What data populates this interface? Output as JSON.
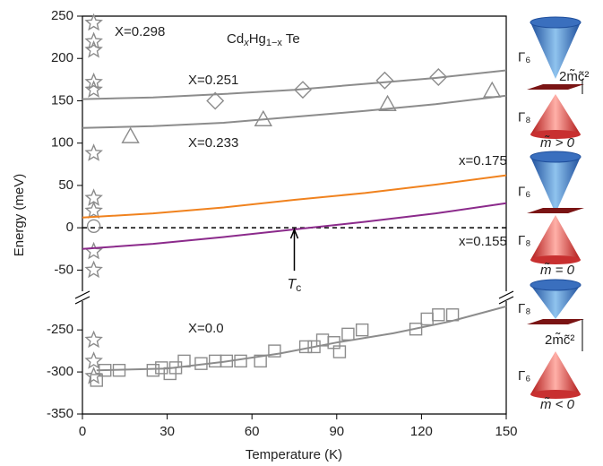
{
  "chart_data": {
    "type": "line",
    "title_parts": [
      "Cd",
      "x",
      "Hg",
      "1−x",
      " Te"
    ],
    "x_label": "Temperature (K)",
    "y_label": "Energy (meV)",
    "xlim": [
      0,
      150
    ],
    "xticks": [
      0,
      30,
      60,
      90,
      120,
      150
    ],
    "y_segments": [
      {
        "ylim": [
          -75,
          250
        ],
        "yticks": [
          -50,
          0,
          50,
          100,
          150,
          200,
          250
        ]
      },
      {
        "ylim": [
          -350,
          -220
        ],
        "yticks": [
          -350,
          -300,
          -250
        ]
      }
    ],
    "zero_line": true,
    "series": [
      {
        "name": "X=0.298",
        "color": "#8c8c8c",
        "marker": "star",
        "marker_x": [
          4,
          4,
          4,
          4,
          4,
          4,
          4,
          4,
          4,
          4,
          4,
          4,
          4
        ],
        "marker_values": [
          242,
          220,
          210,
          172,
          163,
          88,
          35,
          20,
          -28,
          -50,
          -262,
          -287,
          -305
        ]
      },
      {
        "color": "#8c8c8c",
        "marker": "circle",
        "marker_x": [
          4
        ],
        "marker_values": [
          2
        ]
      },
      {
        "name": "X=0.251",
        "color": "#8c8c8c",
        "marker": "diamond",
        "x": [
          0,
          25,
          50,
          75,
          100,
          125,
          150
        ],
        "values": [
          152,
          154,
          158,
          163,
          170,
          177,
          186
        ],
        "marker_x": [
          47,
          78,
          107,
          126
        ],
        "marker_values": [
          150,
          163,
          174,
          178
        ]
      },
      {
        "name": "X=0.233",
        "color": "#8c8c8c",
        "marker": "triangle",
        "x": [
          0,
          25,
          50,
          75,
          100,
          125,
          150
        ],
        "values": [
          118,
          120,
          124,
          131,
          138,
          146,
          156
        ],
        "marker_x": [
          17,
          64,
          108,
          145
        ],
        "marker_values": [
          108,
          128,
          146,
          162
        ]
      },
      {
        "name": "x=0.175",
        "color": "#f0821e",
        "x": [
          0,
          25,
          50,
          75,
          100,
          125,
          150
        ],
        "values": [
          12,
          17,
          24,
          33,
          41,
          51,
          62
        ]
      },
      {
        "name": "x=0.155",
        "color": "#8b2a8b",
        "x": [
          0,
          25,
          50,
          75,
          100,
          125,
          150
        ],
        "values": [
          -25,
          -19,
          -11,
          -2,
          7,
          17,
          29
        ]
      },
      {
        "name": "X=0.0",
        "color": "#8c8c8c",
        "marker": "square",
        "x": [
          5,
          30,
          50,
          70,
          90,
          110,
          130,
          150
        ],
        "values": [
          -298,
          -296,
          -288,
          -278,
          -265,
          -254,
          -240,
          -222
        ],
        "marker_x": [
          5,
          8,
          13,
          25,
          28,
          31,
          33,
          36,
          42,
          47,
          51,
          56,
          63,
          68,
          79,
          82,
          85,
          89,
          91,
          94,
          99,
          118,
          122,
          126,
          131
        ],
        "marker_values": [
          -310,
          -298,
          -298,
          -298,
          -295,
          -302,
          -295,
          -287,
          -290,
          -287,
          -287,
          -287,
          -287,
          -275,
          -270,
          -270,
          -262,
          -265,
          -276,
          -255,
          -250,
          -249,
          -237,
          -232,
          -232
        ]
      }
    ],
    "annotations": [
      {
        "label_main": "T",
        "label_sub": "c",
        "x": 75,
        "y": 0
      }
    ]
  },
  "insets": [
    {
      "upper_label": "Γ₆",
      "lower_label": "Γ₈",
      "gap_label": "2m̃c̃²",
      "mass_label": "m̃ > 0"
    },
    {
      "upper_label": "Γ₆",
      "lower_label": "Γ₈",
      "mass_label": "m̃ = 0"
    },
    {
      "upper_label": "Γ₈",
      "lower_label": "Γ₆",
      "gap_label": "2m̃c̃²",
      "mass_label": "m̃ < 0"
    }
  ]
}
